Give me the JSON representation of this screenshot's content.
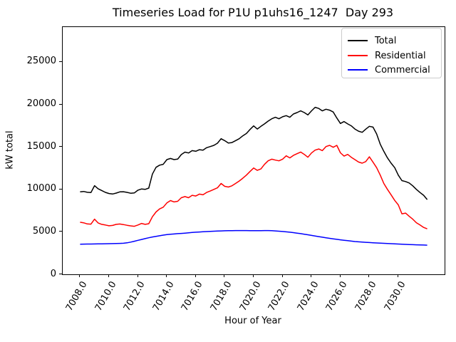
{
  "title": "Timeseries Load for P1U p1uhs16_1247  Day 293",
  "legend": {
    "items": [
      {
        "label": "Total",
        "color": "#000000"
      },
      {
        "label": "Residential",
        "color": "#ff0000"
      },
      {
        "label": "Commercial",
        "color": "#0000ff"
      }
    ]
  },
  "chart_data": {
    "type": "line",
    "title": "Timeseries Load for P1U p1uhs16_1247  Day 293",
    "xlabel": "Hour of Year",
    "ylabel": "kW total",
    "xlim": [
      7006.8,
      7033.2
    ],
    "ylim": [
      0,
      29100
    ],
    "grid": false,
    "legend_position": "upper right",
    "xticks": [
      7008.0,
      7010.0,
      7012.0,
      7014.0,
      7016.0,
      7018.0,
      7020.0,
      7022.0,
      7024.0,
      7026.0,
      7028.0,
      7030.0
    ],
    "xtick_labels": [
      "7008.0",
      "7010.0",
      "7012.0",
      "7014.0",
      "7016.0",
      "7018.0",
      "7020.0",
      "7022.0",
      "7024.0",
      "7026.0",
      "7028.0",
      "7030.0"
    ],
    "yticks": [
      0,
      5000,
      10000,
      15000,
      20000,
      25000
    ],
    "ytick_labels": [
      "0",
      "5000",
      "10000",
      "15000",
      "20000",
      "25000"
    ],
    "x_start": 7008.0,
    "x_step": 0.25,
    "series": [
      {
        "name": "Total",
        "color": "#000000",
        "values": [
          9700,
          9750,
          9650,
          9620,
          10430,
          10070,
          9860,
          9640,
          9510,
          9450,
          9560,
          9700,
          9720,
          9640,
          9540,
          9580,
          9900,
          10050,
          10000,
          10150,
          11800,
          12600,
          12850,
          12950,
          13500,
          13640,
          13500,
          13560,
          14100,
          14380,
          14280,
          14560,
          14480,
          14670,
          14620,
          14900,
          15040,
          15180,
          15430,
          15960,
          15735,
          15456,
          15510,
          15735,
          15960,
          16300,
          16575,
          17050,
          17470,
          17100,
          17415,
          17700,
          18030,
          18310,
          18480,
          18310,
          18540,
          18675,
          18480,
          18870,
          19040,
          19240,
          19040,
          18760,
          19240,
          19660,
          19520,
          19240,
          19430,
          19320,
          19100,
          18400,
          17750,
          17980,
          17700,
          17475,
          17100,
          16850,
          16715,
          17080,
          17415,
          17330,
          16520,
          15315,
          14475,
          13700,
          13080,
          12550,
          11675,
          11030,
          10920,
          10750,
          10415,
          10000,
          9630,
          9300,
          8800
        ]
      },
      {
        "name": "Residential",
        "color": "#ff0000",
        "values": [
          6130,
          6060,
          5930,
          5900,
          6490,
          6050,
          5880,
          5800,
          5712,
          5750,
          5880,
          5920,
          5850,
          5770,
          5700,
          5650,
          5800,
          5990,
          5880,
          5950,
          6780,
          7335,
          7700,
          7900,
          8400,
          8680,
          8520,
          8600,
          9015,
          9150,
          9015,
          9300,
          9215,
          9440,
          9355,
          9634,
          9800,
          10000,
          10180,
          10695,
          10360,
          10275,
          10415,
          10695,
          10975,
          11310,
          11675,
          12100,
          12515,
          12235,
          12400,
          12940,
          13355,
          13550,
          13440,
          13355,
          13550,
          13950,
          13700,
          14000,
          14200,
          14390,
          14110,
          13780,
          14280,
          14615,
          14755,
          14560,
          15035,
          15175,
          14950,
          15180,
          14300,
          13915,
          14110,
          13780,
          13500,
          13215,
          13080,
          13270,
          13830,
          13200,
          12550,
          11675,
          10695,
          10000,
          9355,
          8700,
          8175,
          7120,
          7200,
          6830,
          6495,
          6075,
          5800,
          5515,
          5350
        ]
      },
      {
        "name": "Commercial",
        "color": "#0000ff",
        "values": [
          3550,
          3556,
          3562,
          3568,
          3575,
          3582,
          3590,
          3598,
          3607,
          3617,
          3628,
          3640,
          3655,
          3710,
          3790,
          3890,
          4000,
          4100,
          4200,
          4300,
          4395,
          4470,
          4540,
          4610,
          4675,
          4715,
          4750,
          4785,
          4815,
          4850,
          4885,
          4920,
          4956,
          4980,
          5005,
          5028,
          5050,
          5075,
          5095,
          5110,
          5120,
          5130,
          5140,
          5145,
          5150,
          5150,
          5145,
          5138,
          5130,
          5135,
          5140,
          5145,
          5150,
          5130,
          5105,
          5075,
          5040,
          5000,
          4955,
          4905,
          4850,
          4790,
          4725,
          4655,
          4580,
          4510,
          4440,
          4370,
          4300,
          4235,
          4175,
          4115,
          4060,
          4005,
          3955,
          3905,
          3860,
          3825,
          3795,
          3765,
          3740,
          3715,
          3692,
          3670,
          3650,
          3627,
          3605,
          3582,
          3560,
          3540,
          3522,
          3505,
          3490,
          3474,
          3459,
          3444,
          3430
        ]
      }
    ]
  }
}
